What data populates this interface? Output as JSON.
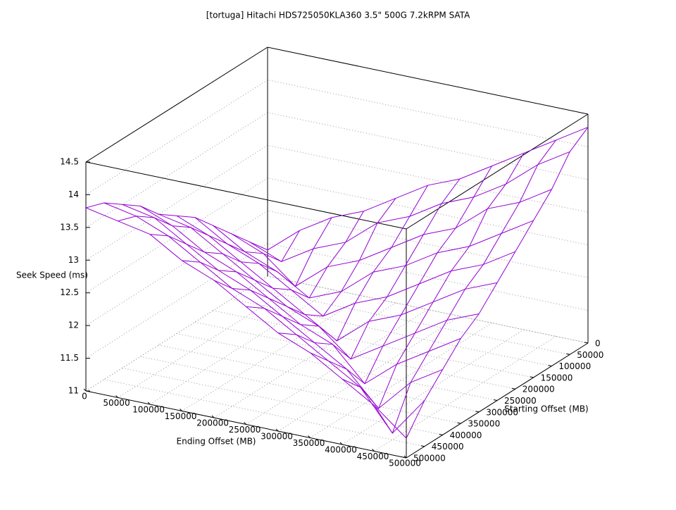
{
  "chart_data": {
    "type": "surface",
    "title": "[tortuga] Hitachi HDS725050KLA360 3.5\" 500G 7.2kRPM SATA",
    "xlabel": "Ending Offset (MB)",
    "ylabel": "Starting Offset (MB)",
    "zlabel": "Seek Speed (ms)",
    "x": [
      0,
      50000,
      100000,
      150000,
      200000,
      250000,
      300000,
      350000,
      400000,
      450000,
      500000
    ],
    "y": [
      0,
      50000,
      100000,
      150000,
      200000,
      250000,
      300000,
      350000,
      400000,
      450000,
      500000
    ],
    "z": [
      [
        11.4,
        11.8,
        12.1,
        12.3,
        12.6,
        12.9,
        13.1,
        13.4,
        13.7,
        14.0,
        14.3
      ],
      [
        11.7,
        11.5,
        11.8,
        12.0,
        12.4,
        12.6,
        12.9,
        13.1,
        13.4,
        13.8,
        14.1
      ],
      [
        12.0,
        11.8,
        11.4,
        11.8,
        12.0,
        12.3,
        12.6,
        12.8,
        13.2,
        13.4,
        13.7
      ],
      [
        12.3,
        12.0,
        11.8,
        11.5,
        11.7,
        12.1,
        12.3,
        12.6,
        12.8,
        13.1,
        13.4
      ],
      [
        12.6,
        12.3,
        12.1,
        11.8,
        11.5,
        11.8,
        12.0,
        12.3,
        12.6,
        12.8,
        13.1
      ],
      [
        12.8,
        12.6,
        12.3,
        12.0,
        11.7,
        11.4,
        11.8,
        12.0,
        12.3,
        12.6,
        12.8
      ],
      [
        13.0,
        12.9,
        12.6,
        12.3,
        12.0,
        11.8,
        11.4,
        11.7,
        12.0,
        12.3,
        12.5
      ],
      [
        13.3,
        13.1,
        12.8,
        12.6,
        12.3,
        12.0,
        11.8,
        11.3,
        11.7,
        12.0,
        12.3
      ],
      [
        13.5,
        13.4,
        13.1,
        12.8,
        12.6,
        12.3,
        12.0,
        11.7,
        11.2,
        11.7,
        12.0
      ],
      [
        13.7,
        13.6,
        13.4,
        13.1,
        12.8,
        12.6,
        12.3,
        12.0,
        11.7,
        11.1,
        11.7
      ],
      [
        13.8,
        13.7,
        13.6,
        13.3,
        13.1,
        12.8,
        12.5,
        12.3,
        12.0,
        11.7,
        11.3
      ]
    ],
    "color": "#9400d3",
    "xlim": [
      0,
      500000
    ],
    "ylim": [
      0,
      500000
    ],
    "zlim": [
      11,
      14.5
    ],
    "xticks": [
      0,
      50000,
      100000,
      150000,
      200000,
      250000,
      300000,
      350000,
      400000,
      450000,
      500000
    ],
    "yticks": [
      0,
      50000,
      100000,
      150000,
      200000,
      250000,
      300000,
      350000,
      400000,
      450000,
      500000
    ],
    "zticks": [
      11,
      11.5,
      12,
      12.5,
      13,
      13.5,
      14,
      14.5
    ],
    "grid": true
  }
}
